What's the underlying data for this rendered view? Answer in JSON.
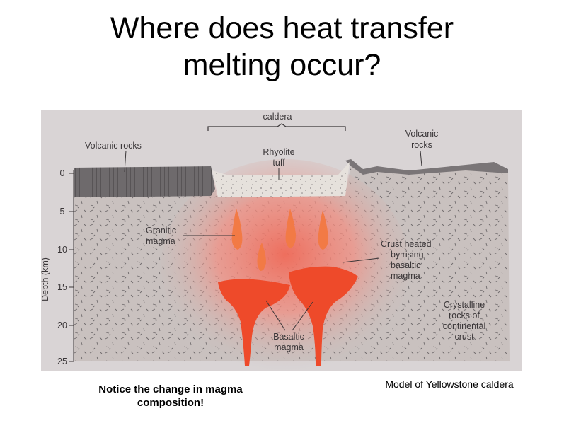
{
  "slide": {
    "title_line1": "Where does heat transfer",
    "title_line2": "melting occur?",
    "caption_left_line1": "Notice the change in magma",
    "caption_left_line2": "composition!",
    "caption_right": "Model of Yellowstone caldera"
  },
  "diagram": {
    "labels": {
      "caldera": "caldera",
      "volcanic_rocks_left": "Volcanic rocks",
      "volcanic_rocks_right_1": "Volcanic",
      "volcanic_rocks_right_2": "rocks",
      "rhyolite_1": "Rhyolite",
      "rhyolite_2": "tuff",
      "granitic_1": "Granitic",
      "granitic_2": "magma",
      "crust_heated_1": "Crust heated",
      "crust_heated_2": "by rising",
      "crust_heated_3": "basaltic",
      "crust_heated_4": "magma",
      "crystalline_1": "Crystalline",
      "crystalline_2": "rocks of",
      "crystalline_3": "continental",
      "crystalline_4": "crust",
      "basaltic_1": "Basaltic",
      "basaltic_2": "magma",
      "depth_axis": "Depth (km)"
    },
    "depth_ticks": [
      "0",
      "5",
      "10",
      "15",
      "20",
      "25"
    ],
    "colors": {
      "crust": "#c9c1bf",
      "heated_zone": "#f08070",
      "magma": "#ee4a2a",
      "granitic_magma": "#f27a45",
      "volcanic_rocks": "#6e6a6c",
      "tuff": "#e6e1dc",
      "background": "#d9d4d5"
    }
  }
}
